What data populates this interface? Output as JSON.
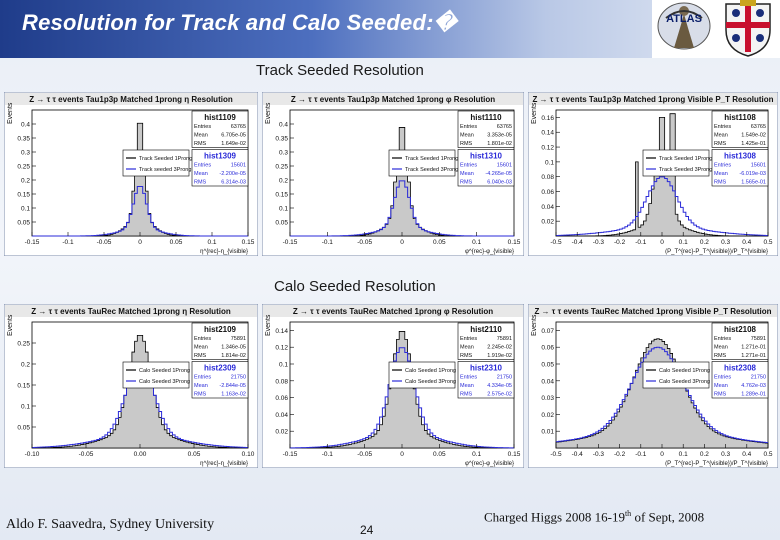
{
  "slide": {
    "title": "Resolution for Track and Calo Seeded:�",
    "section_track": "Track Seeded Resolution",
    "section_calo": "Calo Seeded Resolution",
    "footer_left": "Aldo F. Saavedra, Sydney University",
    "page_number": "24",
    "footer_right_pre": "Charged Higgs 2008  16-19",
    "footer_right_sup": "th",
    "footer_right_post": " of Sept, 2008"
  },
  "colors": {
    "fill": "#c9c9c9",
    "black": "#000000",
    "blue": "#2a2ad8",
    "title_bar": "#1f3c8a"
  },
  "logos": {
    "left": "ATLAS",
    "right": "university-crest"
  },
  "chart_data": [
    {
      "type": "histogram",
      "title": "Z → τ τ events Tau1p3p Matched 1prong η Resolution",
      "ylabel": "Events",
      "xlabel": "η^{rec}-η_{visible}",
      "xlim": [
        -0.15,
        0.15
      ],
      "ylim": [
        0,
        0.45
      ],
      "x_ticks": [
        "-0.15",
        "-0.1",
        "-0.05",
        "0",
        "0.05",
        "0.1",
        "0.15"
      ],
      "y_ticks": [
        "0.05",
        "0.1",
        "0.15",
        "0.2",
        "0.25",
        "0.3",
        "0.35",
        "0.4"
      ],
      "center": 0.0,
      "peak": 0.42,
      "width": 0.006,
      "peak2": 0.18,
      "width2": 0.009,
      "legend": [
        "Track Seeded 1Prong",
        "Track seeded 3Prong"
      ],
      "stats": [
        {
          "name": "hist1109",
          "rows": [
            [
              "Entries",
              "63765"
            ],
            [
              "Mean",
              "6.705e-05"
            ],
            [
              "RMS",
              "1.649e-02"
            ]
          ]
        },
        {
          "name": "hist1309",
          "rows": [
            [
              "Entries",
              "15601"
            ],
            [
              "Mean",
              "-2.200e-05"
            ],
            [
              "RMS",
              "6.314e-03"
            ]
          ]
        }
      ]
    },
    {
      "type": "histogram",
      "title": "Z → τ τ events Tau1p3p Matched 1prong φ Resolution",
      "ylabel": "Events",
      "xlabel": "φ^{rec}-φ_{visible}",
      "xlim": [
        -0.15,
        0.15
      ],
      "ylim": [
        0,
        0.45
      ],
      "x_ticks": [
        "-0.15",
        "-0.1",
        "-0.05",
        "0",
        "0.05",
        "0.1",
        "0.15"
      ],
      "y_ticks": [
        "0.05",
        "0.1",
        "0.15",
        "0.2",
        "0.25",
        "0.3",
        "0.35",
        "0.4"
      ],
      "center": 0.0,
      "peak": 0.4,
      "width": 0.007,
      "peak2": 0.2,
      "width2": 0.01,
      "legend": [
        "Track Seeded 1Prong",
        "Track Seeded 3Prong"
      ],
      "stats": [
        {
          "name": "hist1110",
          "rows": [
            [
              "Entries",
              "63765"
            ],
            [
              "Mean",
              "3.353e-05"
            ],
            [
              "RMS",
              "1.801e-02"
            ]
          ]
        },
        {
          "name": "hist1310",
          "rows": [
            [
              "Entries",
              "15601"
            ],
            [
              "Mean",
              "-4.265e-05"
            ],
            [
              "RMS",
              "6.040e-03"
            ]
          ]
        }
      ]
    },
    {
      "type": "histogram",
      "title": "Z → τ τ events Tau1p3p Matched 1prong Visible P_T Resolution",
      "ylabel": "Events",
      "xlabel": "(P_T^{rec}-P_T^{visible})/P_T^{visible}",
      "xlim": [
        -0.5,
        0.5
      ],
      "ylim": [
        0,
        0.17
      ],
      "x_ticks": [
        "-0.5",
        "-0.4",
        "-0.3",
        "-0.2",
        "-0.1",
        "0",
        "0.1",
        "0.2",
        "0.3",
        "0.4",
        "0.5"
      ],
      "y_ticks": [
        "0.02",
        "0.04",
        "0.06",
        "0.08",
        "0.1",
        "0.12",
        "0.14",
        "0.16"
      ],
      "center": 0.0,
      "peak": 0.12,
      "width": 0.035,
      "peak2": 0.08,
      "width2": 0.07,
      "spikes": [
        [
          0.0,
          0.16
        ],
        [
          0.05,
          0.165
        ],
        [
          -0.12,
          0.1
        ]
      ],
      "legend": [
        "Track Seeded 1Prong",
        "Track Seeded 3Prong"
      ],
      "stats": [
        {
          "name": "hist1108",
          "rows": [
            [
              "Entries",
              "63765"
            ],
            [
              "Mean",
              "1.549e-02"
            ],
            [
              "RMS",
              "1.425e-01"
            ]
          ]
        },
        {
          "name": "hist1308",
          "rows": [
            [
              "Entries",
              "15601"
            ],
            [
              "Mean",
              "-6.019e-03"
            ],
            [
              "RMS",
              "1.565e-01"
            ]
          ]
        }
      ]
    },
    {
      "type": "histogram",
      "title": "Z → τ τ events TauRec Matched 1prong η Resolution",
      "ylabel": "Events",
      "xlabel": "η^{rec}-η_{visible}",
      "xlim": [
        -0.1,
        0.1
      ],
      "ylim": [
        0,
        0.3
      ],
      "x_ticks": [
        "-0.10",
        "-0.05",
        "0.00",
        "0.05",
        "0.10"
      ],
      "y_ticks": [
        "0.05",
        "0.1",
        "0.15",
        "0.2",
        "0.25"
      ],
      "center": 0.0,
      "peak": 0.27,
      "width": 0.01,
      "peak2": 0.2,
      "width2": 0.013,
      "legend": [
        "Calo Seeded 1Prong",
        "Calo Seeded 3Prong"
      ],
      "stats": [
        {
          "name": "hist2109",
          "rows": [
            [
              "Entries",
              "75891"
            ],
            [
              "Mean",
              "1.346e-05"
            ],
            [
              "RMS",
              "1.814e-02"
            ]
          ]
        },
        {
          "name": "hist2309",
          "rows": [
            [
              "Entries",
              "21750"
            ],
            [
              "Mean",
              "-2.844e-05"
            ],
            [
              "RMS",
              "1.163e-02"
            ]
          ]
        }
      ]
    },
    {
      "type": "histogram",
      "title": "Z → τ τ events TauRec Matched 1prong φ Resolution",
      "ylabel": "Events",
      "xlabel": "φ^{rec}-φ_{visible}",
      "xlim": [
        -0.15,
        0.15
      ],
      "ylim": [
        0,
        0.15
      ],
      "x_ticks": [
        "-0.15",
        "-0.1",
        "-0.05",
        "0",
        "0.05",
        "0.1",
        "0.15"
      ],
      "y_ticks": [
        "0.02",
        "0.04",
        "0.06",
        "0.08",
        "0.1",
        "0.12",
        "0.14"
      ],
      "center": 0.0,
      "peak": 0.14,
      "width": 0.013,
      "peak2": 0.12,
      "width2": 0.016,
      "legend": [
        "Calo Seeded 1Prong",
        "Calo Seeded 3Prong"
      ],
      "stats": [
        {
          "name": "hist2110",
          "rows": [
            [
              "Entries",
              "75891"
            ],
            [
              "Mean",
              "2.245e-02"
            ],
            [
              "RMS",
              "1.919e-02"
            ]
          ]
        },
        {
          "name": "hist2310",
          "rows": [
            [
              "Entries",
              "21750"
            ],
            [
              "Mean",
              "4.334e-05"
            ],
            [
              "RMS",
              "2.575e-02"
            ]
          ]
        }
      ]
    },
    {
      "type": "histogram",
      "title": "Z → τ τ events TauRec Matched 1prong Visible P_T Resolution",
      "ylabel": "Events",
      "xlabel": "(P_T^{rec}-P_T^{visible})/P_T^{visible}",
      "xlim": [
        -0.5,
        0.5
      ],
      "ylim": [
        0,
        0.075
      ],
      "x_ticks": [
        "-0.5",
        "-0.4",
        "-0.3",
        "-0.2",
        "-0.1",
        "0",
        "0.1",
        "0.2",
        "0.3",
        "0.4",
        "0.5"
      ],
      "y_ticks": [
        "0.01",
        "0.02",
        "0.03",
        "0.04",
        "0.05",
        "0.06",
        "0.07"
      ],
      "center": -0.02,
      "peak": 0.065,
      "width": 0.11,
      "peak2": 0.06,
      "width2": 0.12,
      "legend": [
        "Calo Seeded 1Prong",
        "Calo Seeded 3Prong"
      ],
      "stats": [
        {
          "name": "hist2108",
          "rows": [
            [
              "Entries",
              "75891"
            ],
            [
              "Mean",
              "1.271e-01"
            ],
            [
              "RMS",
              "1.271e-01"
            ]
          ]
        },
        {
          "name": "hist2308",
          "rows": [
            [
              "Entries",
              "21750"
            ],
            [
              "Mean",
              "4.762e-03"
            ],
            [
              "RMS",
              "1.289e-01"
            ]
          ]
        }
      ]
    }
  ]
}
